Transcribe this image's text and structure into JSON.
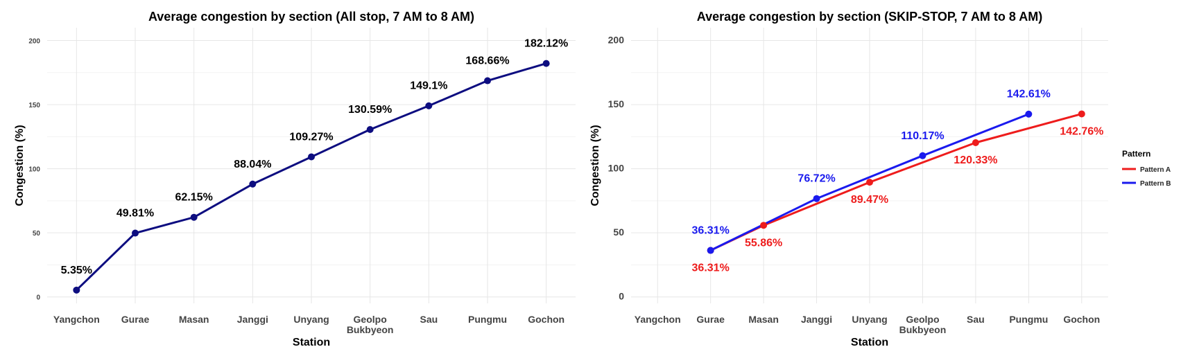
{
  "chart_data": [
    {
      "type": "line",
      "title": "Average congestion by section (All stop, 7 AM to 8 AM)",
      "xlabel": "Station",
      "ylabel": "Congestion (%)",
      "categories": [
        "Yangchon",
        "Gurae",
        "Masan",
        "Janggi",
        "Unyang",
        "Geolpo\nBukbyeon",
        "Sau",
        "Pungmu",
        "Gochon"
      ],
      "ylim": [
        -5,
        210
      ],
      "yticks": [
        "0",
        "50",
        "100",
        "150",
        "200"
      ],
      "grid": true,
      "colors": {
        "line": "#0d0d80"
      },
      "series": [
        {
          "values": [
            5.35,
            49.81,
            62.15,
            88.04,
            109.27,
            130.59,
            149.1,
            168.66,
            182.12
          ],
          "labels": [
            "5.35%",
            "49.81%",
            "62.15%",
            "88.04%",
            "109.27%",
            "130.59%",
            "149.1%",
            "168.66%",
            "182.12%"
          ]
        }
      ]
    },
    {
      "type": "line",
      "title": "Average congestion by section (SKIP-STOP, 7 AM to 8 AM)",
      "xlabel": "Station",
      "ylabel": "Congestion (%)",
      "categories": [
        "Yangchon",
        "Gurae",
        "Masan",
        "Janggi",
        "Unyang",
        "Geolpo\nBukbyeon",
        "Sau",
        "Pungmu",
        "Gochon"
      ],
      "ylim": [
        -5,
        210
      ],
      "yticks": [
        "0",
        "50",
        "100",
        "150",
        "200"
      ],
      "grid": true,
      "legend": {
        "title": "Pattern",
        "placement": "right"
      },
      "series": [
        {
          "name": "Pattern A",
          "color": "#ee1c1c",
          "points": [
            {
              "x": "Gurae",
              "y": 36.31,
              "label": "36.31%"
            },
            {
              "x": "Masan",
              "y": 55.86,
              "label": "55.86%"
            },
            {
              "x": "Unyang",
              "y": 89.47,
              "label": "89.47%"
            },
            {
              "x": "Sau",
              "y": 120.33,
              "label": "120.33%"
            },
            {
              "x": "Gochon",
              "y": 142.76,
              "label": "142.76%"
            }
          ]
        },
        {
          "name": "Pattern B",
          "color": "#1a1aee",
          "points": [
            {
              "x": "Gurae",
              "y": 36.31,
              "label": "36.31%"
            },
            {
              "x": "Janggi",
              "y": 76.72,
              "label": "76.72%"
            },
            {
              "x": "Geolpo\nBukbyeon",
              "y": 110.17,
              "label": "110.17%"
            },
            {
              "x": "Pungmu",
              "y": 142.61,
              "label": "142.61%"
            }
          ]
        }
      ]
    }
  ]
}
